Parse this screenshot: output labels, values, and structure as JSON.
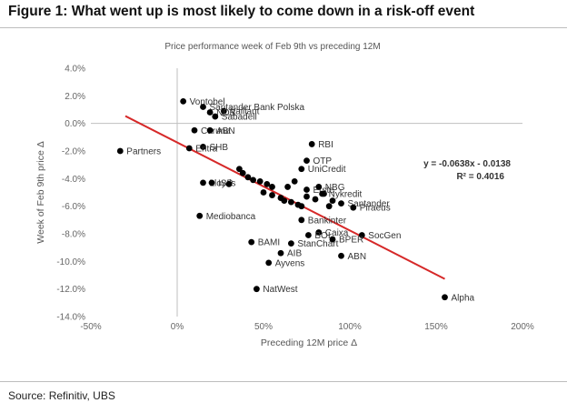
{
  "figure": {
    "title": "Figure 1: What went up is most likely to come down in a risk-off event",
    "source": "Source: Refinitiv, UBS"
  },
  "chart_data": {
    "type": "scatter",
    "title": "Price performance week of Feb 9th vs preceding 12M",
    "xlabel": "Preceding 12M price Δ",
    "ylabel": "Week of Feb 9th price Δ",
    "xlim": [
      -50,
      200
    ],
    "ylim": [
      -14,
      4
    ],
    "xticks": [
      -50,
      0,
      50,
      100,
      150,
      200
    ],
    "xtick_labels": [
      "-50%",
      "0%",
      "50%",
      "100%",
      "150%",
      "200%"
    ],
    "yticks": [
      4,
      2,
      0,
      -2,
      -4,
      -6,
      -8,
      -10,
      -12,
      -14
    ],
    "ytick_labels": [
      "4.0%",
      "2.0%",
      "0.0%",
      "-2.0%",
      "-4.0%",
      "-6.0%",
      "-8.0%",
      "-10.0%",
      "-12.0%",
      "-14.0%"
    ],
    "points": [
      {
        "label": "Vontobel",
        "x": 3.5,
        "y": 1.6
      },
      {
        "label": "Santander Bank Polska",
        "x": 15,
        "y": 1.2
      },
      {
        "label": "Vaillant",
        "x": 27,
        "y": 0.9
      },
      {
        "label": "NDB",
        "x": 19,
        "y": 0.8
      },
      {
        "label": "Sabadell",
        "x": 22,
        "y": 0.5
      },
      {
        "label": "Caruna",
        "x": 10,
        "y": -0.5
      },
      {
        "label": "ABN",
        "x": 19,
        "y": -0.5
      },
      {
        "label": "SHB",
        "x": 15,
        "y": -1.7
      },
      {
        "label": "Entra",
        "x": 7,
        "y": -1.8
      },
      {
        "label": "Partners",
        "x": -33,
        "y": -2
      },
      {
        "label": "RBI",
        "x": 78,
        "y": -1.5
      },
      {
        "label": "OTP",
        "x": 75,
        "y": -2.7
      },
      {
        "label": "",
        "x": 36,
        "y": -3.3
      },
      {
        "label": "",
        "x": 38,
        "y": -3.6
      },
      {
        "label": "",
        "x": 41,
        "y": -3.9
      },
      {
        "label": "",
        "x": 44,
        "y": -4.1
      },
      {
        "label": "",
        "x": 48,
        "y": -4.2
      },
      {
        "label": "",
        "x": 52,
        "y": -4.4
      },
      {
        "label": "",
        "x": 55,
        "y": -4.6
      },
      {
        "label": "",
        "x": 50,
        "y": -5.0
      },
      {
        "label": "",
        "x": 55,
        "y": -5.2
      },
      {
        "label": "",
        "x": 60,
        "y": -5.4
      },
      {
        "label": "",
        "x": 62,
        "y": -5.6
      },
      {
        "label": "",
        "x": 66,
        "y": -5.7
      },
      {
        "label": "",
        "x": 70,
        "y": -5.9
      },
      {
        "label": "",
        "x": 75,
        "y": -5.3
      },
      {
        "label": "",
        "x": 72,
        "y": -6.0
      },
      {
        "label": "",
        "x": 80,
        "y": -5.5
      },
      {
        "label": "",
        "x": 85,
        "y": -5.1
      },
      {
        "label": "",
        "x": 88,
        "y": -6.0
      },
      {
        "label": "",
        "x": 90,
        "y": -5.6
      },
      {
        "label": "",
        "x": 64,
        "y": -4.6
      },
      {
        "label": "",
        "x": 68,
        "y": -4.2
      },
      {
        "label": "Lloyds",
        "x": 15,
        "y": -4.3
      },
      {
        "label": "ISP",
        "x": 20,
        "y": -4.3
      },
      {
        "label": "",
        "x": 30,
        "y": -4.4
      },
      {
        "label": "UniCredit",
        "x": 72,
        "y": -3.3
      },
      {
        "label": "Erste",
        "x": 75,
        "y": -4.8
      },
      {
        "label": "NBG",
        "x": 82,
        "y": -4.6
      },
      {
        "label": "Nykredit",
        "x": 84,
        "y": -5.1
      },
      {
        "label": "Santander",
        "x": 95,
        "y": -5.8
      },
      {
        "label": "Piraeus",
        "x": 102,
        "y": -6.1
      },
      {
        "label": "Mediobanca",
        "x": 13,
        "y": -6.7
      },
      {
        "label": "Bankinter",
        "x": 72,
        "y": -7.0
      },
      {
        "label": "Caixa",
        "x": 82,
        "y": -7.9
      },
      {
        "label": "SocGen",
        "x": 107,
        "y": -8.1
      },
      {
        "label": "BAMI",
        "x": 43,
        "y": -8.6
      },
      {
        "label": "BOI",
        "x": 76,
        "y": -8.1
      },
      {
        "label": "BPER",
        "x": 90,
        "y": -8.4
      },
      {
        "label": "StanChart",
        "x": 66,
        "y": -8.7
      },
      {
        "label": "AIB",
        "x": 60,
        "y": -9.4
      },
      {
        "label": "ABN",
        "x": 95,
        "y": -9.6
      },
      {
        "label": "Ayvens",
        "x": 53,
        "y": -10.1
      },
      {
        "label": "NatWest",
        "x": 46,
        "y": -12.0
      },
      {
        "label": "Alpha",
        "x": 155,
        "y": -12.6
      }
    ],
    "trendline": {
      "equation": "y = -0.0638x - 0.0138",
      "r2": "R² = 0.4016",
      "slope": -0.0638,
      "intercept_pct": -1.38,
      "x_range": [
        -30,
        155
      ],
      "color": "#d62828"
    },
    "colors": {
      "point": "#000000",
      "axis": "#bfbfbf",
      "trend": "#d62828"
    }
  }
}
